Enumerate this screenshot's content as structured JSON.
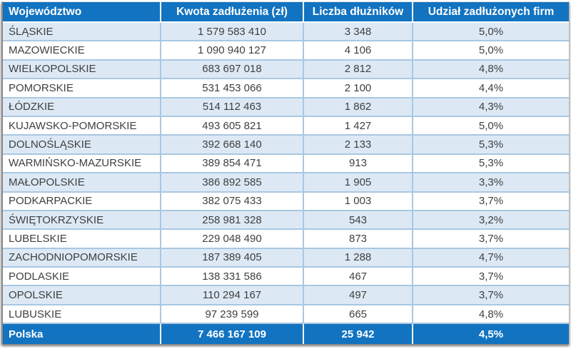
{
  "colors": {
    "header_bg": "#1273c0",
    "stripe_bg": "#dce9f5",
    "plain_bg": "#ffffff",
    "row_border": "#a9c7e1",
    "cell_text": "#3f3f3f",
    "header_text": "#ffffff"
  },
  "chart_data": {
    "type": "table",
    "title": "",
    "columns": [
      "Województwo",
      "Kwota zadłużenia (zł)",
      "Liczba dłużników",
      "Udział zadłużonych firm"
    ],
    "rows": [
      [
        "ŚLĄSKIE",
        "1 579 583 410",
        "3 348",
        "5,0%"
      ],
      [
        "MAZOWIECKIE",
        "1 090 940 127",
        "4 106",
        "5,0%"
      ],
      [
        "WIELKOPOLSKIE",
        "683 697 018",
        "2 812",
        "4,8%"
      ],
      [
        "POMORSKIE",
        "531 453 066",
        "2 100",
        "4,4%"
      ],
      [
        "ŁÓDZKIE",
        "514 112 463",
        "1 862",
        "4,3%"
      ],
      [
        "KUJAWSKO-POMORSKIE",
        "493 605 821",
        "1 427",
        "5,0%"
      ],
      [
        "DOLNOŚLĄSKIE",
        "392 668 140",
        "2 133",
        "5,3%"
      ],
      [
        "WARMIŃSKO-MAZURSKIE",
        "389 854 471",
        "913",
        "5,3%"
      ],
      [
        "MAŁOPOLSKIE",
        "386 892 585",
        "1 905",
        "3,3%"
      ],
      [
        "PODKARPACKIE",
        "382 075 433",
        "1 003",
        "3,7%"
      ],
      [
        "ŚWIĘTOKRZYSKIE",
        "258 981 328",
        "543",
        "3,2%"
      ],
      [
        "LUBELSKIE",
        "229 048 490",
        "873",
        "3,7%"
      ],
      [
        "ZACHODNIOPOMORSKIE",
        "187 389 405",
        "1 288",
        "4,7%"
      ],
      [
        "PODLASKIE",
        "138 331 586",
        "467",
        "3,7%"
      ],
      [
        "OPOLSKIE",
        "110 294 167",
        "497",
        "3,7%"
      ],
      [
        "LUBUSKIE",
        "97 239 599",
        "665",
        "4,8%"
      ]
    ],
    "total_row": [
      "Polska",
      "7 466 167 109",
      "25 942",
      "4,5%"
    ]
  }
}
